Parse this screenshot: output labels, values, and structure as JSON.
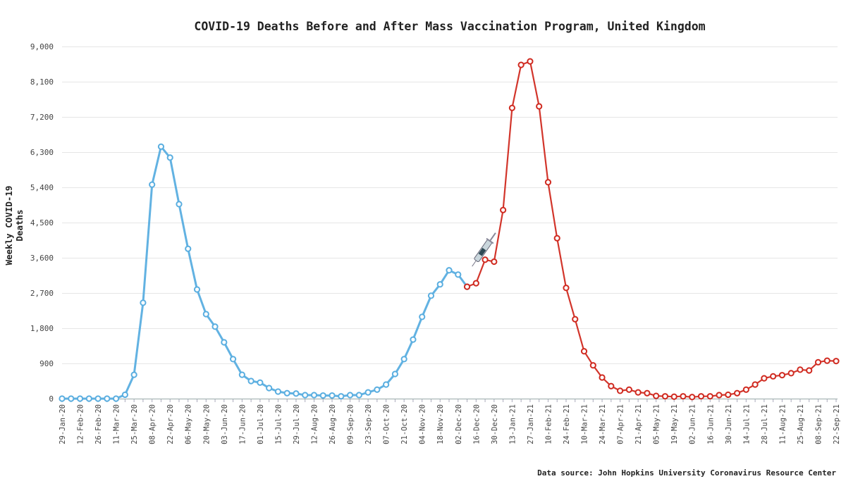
{
  "chart_data": {
    "type": "line",
    "title": "COVID-19 Deaths Before and After Mass Vaccination Program, United Kingdom",
    "xlabel": "",
    "ylabel": "Weekly COVID-19 Deaths",
    "source": "Data source: John Hopkins University Coronavirus Resource Center",
    "ylim": [
      0,
      9000
    ],
    "yticks": [
      "0",
      "900",
      "1,800",
      "2,700",
      "3,600",
      "4,500",
      "5,400",
      "6,300",
      "7,200",
      "8,100",
      "9,000"
    ],
    "ytick_values": [
      0,
      900,
      1800,
      2700,
      3600,
      4500,
      5400,
      6300,
      7200,
      8100,
      9000
    ],
    "x_interval": "weekly",
    "x_count": 87,
    "x_tick_every": 2,
    "x_tick_labels": [
      "29-Jan-20",
      "12-Feb-20",
      "26-Feb-20",
      "11-Mar-20",
      "25-Mar-20",
      "08-Apr-20",
      "22-Apr-20",
      "06-May-20",
      "20-May-20",
      "03-Jun-20",
      "17-Jun-20",
      "01-Jul-20",
      "15-Jul-20",
      "29-Jul-20",
      "12-Aug-20",
      "26-Aug-20",
      "09-Sep-20",
      "23-Sep-20",
      "07-Oct-20",
      "21-Oct-20",
      "04-Nov-20",
      "18-Nov-20",
      "02-Dec-20",
      "16-Dec-20",
      "30-Dec-20",
      "13-Jan-21",
      "27-Jan-21",
      "10-Feb-21",
      "24-Feb-21",
      "10-Mar-21",
      "24-Mar-21",
      "07-Apr-21",
      "21-Apr-21",
      "05-May-21",
      "19-May-21",
      "02-Jun-21",
      "16-Jun-21",
      "30-Jun-21",
      "14-Jul-21",
      "28-Jul-21",
      "11-Aug-21",
      "25-Aug-21",
      "08-Sep-21",
      "22-Sep-21"
    ],
    "grid": true,
    "series": [
      {
        "color": "#5aaee0",
        "start_index": 0,
        "values": [
          0,
          0,
          0,
          0,
          0,
          0,
          0,
          100,
          610,
          2450,
          5470,
          6440,
          6160,
          4970,
          3830,
          2790,
          2160,
          1840,
          1440,
          1010,
          610,
          450,
          410,
          270,
          180,
          140,
          130,
          90,
          90,
          80,
          80,
          60,
          90,
          90,
          160,
          230,
          360,
          630,
          1010,
          1510,
          2090,
          2630,
          2920,
          3280,
          3170,
          2860
        ]
      },
      {
        "color": "#d02a20",
        "start_index": 45,
        "values": [
          2860,
          2950,
          3550,
          3500,
          4820,
          7430,
          8530,
          8620,
          7470,
          5530,
          4100,
          2830,
          2030,
          1210,
          850,
          540,
          320,
          200,
          230,
          160,
          140,
          70,
          60,
          50,
          60,
          40,
          60,
          60,
          90,
          100,
          140,
          230,
          360,
          520,
          570,
          600,
          650,
          740,
          720,
          930,
          970,
          960
        ]
      }
    ],
    "annotation_icon": "syringe-icon"
  }
}
